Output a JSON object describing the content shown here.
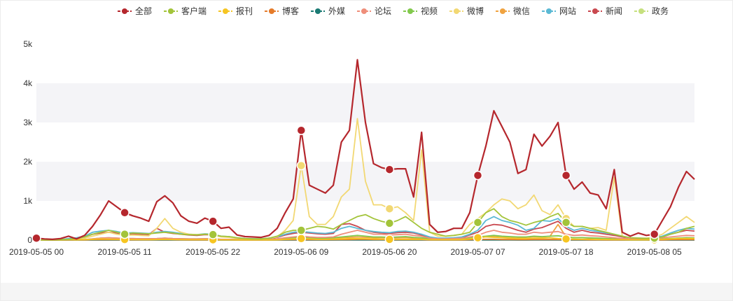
{
  "chart_data": {
    "type": "line",
    "ylim": [
      0,
      5000
    ],
    "y_ticks": [
      "0",
      "1k",
      "2k",
      "3k",
      "4k",
      "5k"
    ],
    "y_tick_values": [
      0,
      1000,
      2000,
      3000,
      4000,
      5000
    ],
    "x_tick_labels": [
      "2019-05-05 00",
      "2019-05-05 11",
      "2019-05-05 22",
      "2019-05-06 09",
      "2019-05-06 20",
      "2019-05-07 07",
      "2019-05-07 18",
      "2019-05-08 05"
    ],
    "x_tick_index": [
      0,
      11,
      22,
      33,
      44,
      55,
      66,
      77
    ],
    "x_count": 83,
    "legend_position": "top-center",
    "grid": true,
    "series": [
      {
        "name": "全部",
        "color": "#b5272d",
        "width": 2.2,
        "markers": [
          0,
          11,
          22,
          33,
          44,
          55,
          66,
          77
        ],
        "values": [
          50,
          30,
          20,
          40,
          100,
          30,
          120,
          350,
          650,
          1000,
          850,
          700,
          620,
          560,
          480,
          980,
          1130,
          950,
          620,
          480,
          430,
          560,
          480,
          300,
          330,
          130,
          90,
          80,
          70,
          120,
          300,
          700,
          1050,
          2800,
          1400,
          1300,
          1200,
          1400,
          2500,
          2800,
          4600,
          3000,
          1950,
          1850,
          1800,
          1820,
          1820,
          1100,
          2750,
          400,
          200,
          220,
          300,
          300,
          700,
          1650,
          2400,
          3300,
          2900,
          2500,
          1700,
          1800,
          2700,
          2400,
          2650,
          3000,
          1650,
          1300,
          1480,
          1200,
          1150,
          800,
          1800,
          200,
          100,
          180,
          120,
          150,
          500,
          850,
          1350,
          1750,
          1550
        ]
      },
      {
        "name": "客户端",
        "color": "#a3c43a",
        "width": 1.8,
        "markers": [
          11,
          22,
          33,
          44,
          55,
          66,
          77
        ],
        "values": [
          10,
          5,
          5,
          10,
          20,
          40,
          80,
          150,
          200,
          250,
          200,
          150,
          180,
          170,
          160,
          180,
          200,
          180,
          150,
          140,
          130,
          150,
          140,
          100,
          90,
          60,
          40,
          30,
          30,
          50,
          100,
          200,
          250,
          250,
          300,
          350,
          330,
          280,
          400,
          500,
          600,
          650,
          550,
          480,
          430,
          500,
          600,
          450,
          300,
          200,
          150,
          100,
          120,
          150,
          200,
          450,
          700,
          800,
          600,
          500,
          450,
          380,
          450,
          500,
          600,
          680,
          450,
          350,
          350,
          300,
          250,
          200,
          150,
          100,
          60,
          50,
          40,
          50,
          80,
          150,
          200,
          300,
          350
        ]
      },
      {
        "name": "报刊",
        "color": "#f6c522",
        "width": 1.8,
        "markers": [
          11,
          22,
          33,
          44,
          55,
          66,
          77
        ],
        "values": [
          5,
          3,
          3,
          5,
          10,
          8,
          10,
          20,
          30,
          25,
          20,
          15,
          15,
          12,
          12,
          15,
          20,
          15,
          12,
          10,
          10,
          12,
          10,
          8,
          8,
          5,
          5,
          5,
          5,
          5,
          8,
          20,
          30,
          40,
          30,
          20,
          20,
          25,
          30,
          40,
          40,
          35,
          30,
          25,
          20,
          20,
          20,
          20,
          20,
          10,
          10,
          10,
          10,
          15,
          30,
          60,
          80,
          70,
          60,
          50,
          40,
          40,
          50,
          50,
          60,
          40,
          30,
          25,
          20,
          20,
          15,
          15,
          10,
          10,
          8,
          8,
          8,
          10,
          20,
          30,
          40,
          40,
          40
        ]
      },
      {
        "name": "博客",
        "color": "#e57b2a",
        "width": 1.8,
        "markers": [],
        "values": [
          2,
          2,
          2,
          2,
          5,
          5,
          5,
          10,
          10,
          10,
          10,
          8,
          8,
          8,
          8,
          10,
          10,
          10,
          8,
          5,
          5,
          5,
          5,
          5,
          5,
          3,
          3,
          3,
          3,
          3,
          5,
          10,
          10,
          15,
          10,
          10,
          10,
          10,
          15,
          15,
          20,
          20,
          15,
          15,
          10,
          10,
          15,
          10,
          10,
          5,
          5,
          5,
          5,
          5,
          10,
          15,
          20,
          20,
          15,
          15,
          10,
          10,
          15,
          15,
          15,
          15,
          10,
          10,
          10,
          8,
          8,
          5,
          5,
          5,
          5,
          5,
          5,
          5,
          5,
          10,
          10,
          10,
          10
        ]
      },
      {
        "name": "外媒",
        "color": "#1b7a73",
        "width": 1.8,
        "markers": [],
        "values": [
          1,
          1,
          1,
          1,
          2,
          2,
          2,
          3,
          3,
          3,
          3,
          3,
          3,
          3,
          3,
          3,
          3,
          3,
          3,
          2,
          2,
          2,
          2,
          2,
          2,
          1,
          1,
          1,
          1,
          1,
          2,
          3,
          3,
          5,
          3,
          3,
          3,
          3,
          5,
          5,
          5,
          5,
          5,
          5,
          3,
          3,
          3,
          3,
          3,
          2,
          2,
          2,
          2,
          2,
          3,
          5,
          5,
          5,
          5,
          5,
          3,
          3,
          5,
          5,
          5,
          5,
          3,
          3,
          3,
          3,
          3,
          2,
          2,
          2,
          2,
          2,
          2,
          2,
          2,
          3,
          3,
          3,
          3
        ]
      },
      {
        "name": "论坛",
        "color": "#ef8e7a",
        "width": 1.8,
        "markers": [],
        "values": [
          5,
          3,
          3,
          5,
          10,
          10,
          15,
          30,
          50,
          60,
          50,
          40,
          40,
          35,
          35,
          40,
          50,
          40,
          35,
          30,
          30,
          35,
          30,
          20,
          20,
          15,
          10,
          10,
          10,
          15,
          30,
          60,
          80,
          100,
          80,
          70,
          70,
          80,
          150,
          200,
          250,
          200,
          150,
          150,
          130,
          140,
          150,
          120,
          100,
          50,
          30,
          30,
          40,
          50,
          80,
          120,
          200,
          250,
          200,
          180,
          150,
          150,
          200,
          180,
          200,
          220,
          150,
          120,
          130,
          110,
          100,
          80,
          60,
          40,
          30,
          25,
          30,
          40,
          60,
          80,
          100,
          120,
          110
        ]
      },
      {
        "name": "视频",
        "color": "#82c94c",
        "width": 1.8,
        "markers": [],
        "values": [
          5,
          3,
          3,
          5,
          10,
          10,
          15,
          30,
          50,
          60,
          50,
          40,
          40,
          35,
          35,
          40,
          50,
          40,
          35,
          30,
          30,
          35,
          30,
          20,
          20,
          15,
          10,
          10,
          10,
          15,
          30,
          50,
          60,
          70,
          60,
          50,
          50,
          60,
          80,
          100,
          120,
          100,
          80,
          80,
          70,
          80,
          90,
          70,
          60,
          30,
          20,
          20,
          25,
          30,
          50,
          80,
          100,
          120,
          100,
          90,
          80,
          80,
          100,
          90,
          100,
          110,
          80,
          60,
          65,
          55,
          50,
          40,
          30,
          20,
          15,
          15,
          15,
          20,
          30,
          40,
          50,
          60,
          55
        ]
      },
      {
        "name": "微博",
        "color": "#f2d873",
        "width": 1.8,
        "markers": [
          33,
          44,
          66
        ],
        "values": [
          10,
          5,
          5,
          10,
          20,
          30,
          50,
          100,
          150,
          200,
          150,
          120,
          130,
          120,
          110,
          300,
          550,
          300,
          200,
          150,
          140,
          150,
          140,
          80,
          70,
          50,
          30,
          30,
          30,
          50,
          80,
          250,
          500,
          1900,
          600,
          400,
          400,
          600,
          1100,
          1300,
          3100,
          1500,
          900,
          900,
          800,
          850,
          700,
          500,
          2300,
          200,
          100,
          100,
          120,
          150,
          400,
          550,
          700,
          900,
          1050,
          1000,
          800,
          900,
          1150,
          750,
          650,
          900,
          550,
          350,
          350,
          300,
          320,
          250,
          1600,
          100,
          50,
          50,
          50,
          80,
          150,
          300,
          450,
          600,
          450
        ]
      },
      {
        "name": "微信",
        "color": "#f0a340",
        "width": 1.8,
        "markers": [],
        "values": [
          3,
          2,
          2,
          3,
          5,
          5,
          8,
          15,
          20,
          25,
          20,
          15,
          15,
          15,
          15,
          20,
          20,
          20,
          15,
          12,
          12,
          15,
          12,
          10,
          10,
          8,
          5,
          5,
          5,
          8,
          15,
          30,
          40,
          50,
          40,
          35,
          35,
          40,
          60,
          70,
          80,
          70,
          60,
          60,
          50,
          55,
          60,
          50,
          40,
          20,
          15,
          15,
          20,
          25,
          40,
          60,
          80,
          100,
          90,
          80,
          70,
          70,
          90,
          80,
          100,
          400,
          80,
          60,
          60,
          50,
          45,
          40,
          30,
          20,
          15,
          15,
          15,
          20,
          30,
          40,
          50,
          60,
          55
        ]
      },
      {
        "name": "网站",
        "color": "#5bb9d4",
        "width": 1.8,
        "markers": [],
        "values": [
          15,
          10,
          10,
          15,
          40,
          60,
          100,
          200,
          230,
          250,
          220,
          180,
          190,
          180,
          170,
          200,
          220,
          200,
          170,
          150,
          140,
          160,
          150,
          100,
          90,
          60,
          40,
          35,
          35,
          50,
          80,
          150,
          200,
          220,
          200,
          180,
          170,
          200,
          300,
          350,
          300,
          250,
          220,
          200,
          190,
          220,
          230,
          200,
          150,
          80,
          50,
          50,
          60,
          80,
          150,
          250,
          500,
          600,
          500,
          450,
          380,
          250,
          300,
          500,
          480,
          550,
          350,
          250,
          300,
          250,
          220,
          180,
          150,
          100,
          60,
          50,
          50,
          60,
          100,
          180,
          250,
          300,
          280
        ]
      },
      {
        "name": "新闻",
        "color": "#c9484f",
        "width": 1.8,
        "markers": [],
        "values": [
          10,
          8,
          8,
          10,
          30,
          50,
          80,
          150,
          180,
          200,
          180,
          150,
          160,
          150,
          140,
          300,
          200,
          170,
          150,
          130,
          120,
          140,
          130,
          90,
          80,
          50,
          35,
          30,
          30,
          45,
          70,
          130,
          170,
          200,
          180,
          160,
          150,
          170,
          400,
          420,
          350,
          250,
          200,
          180,
          170,
          190,
          200,
          180,
          130,
          70,
          45,
          45,
          55,
          70,
          130,
          200,
          350,
          400,
          380,
          320,
          250,
          200,
          280,
          320,
          400,
          480,
          300,
          200,
          250,
          200,
          180,
          150,
          120,
          80,
          50,
          40,
          40,
          50,
          80,
          150,
          200,
          250,
          230
        ]
      },
      {
        "name": "政务",
        "color": "#c6e07e",
        "width": 1.8,
        "markers": [],
        "values": [
          2,
          1,
          1,
          2,
          3,
          3,
          5,
          8,
          10,
          12,
          10,
          8,
          8,
          8,
          8,
          10,
          10,
          10,
          8,
          6,
          6,
          8,
          6,
          5,
          5,
          3,
          2,
          2,
          2,
          3,
          5,
          10,
          12,
          15,
          12,
          10,
          10,
          12,
          15,
          20,
          25,
          20,
          15,
          15,
          12,
          15,
          15,
          12,
          10,
          5,
          3,
          3,
          4,
          5,
          10,
          15,
          20,
          25,
          20,
          18,
          15,
          15,
          20,
          18,
          20,
          22,
          15,
          12,
          12,
          10,
          10,
          8,
          6,
          4,
          3,
          3,
          3,
          4,
          6,
          8,
          10,
          12,
          11
        ]
      }
    ]
  }
}
